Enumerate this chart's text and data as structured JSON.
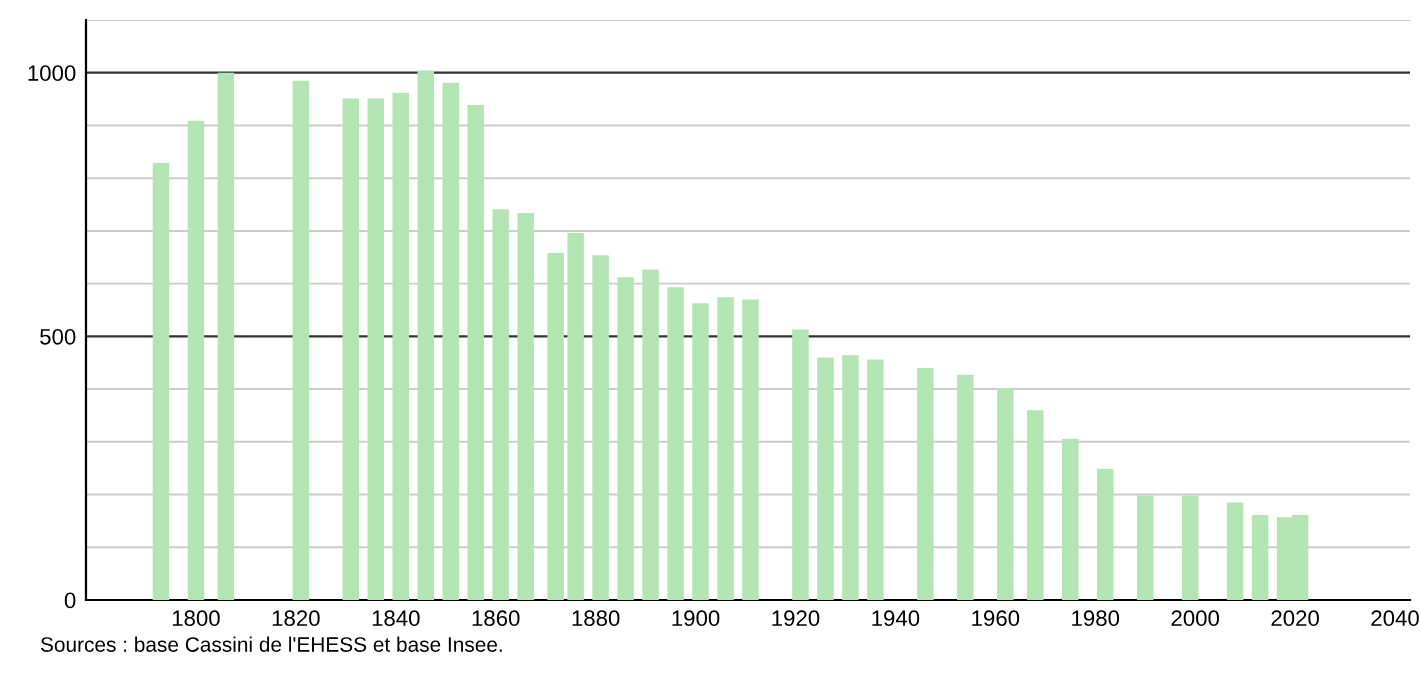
{
  "chart_data": {
    "type": "bar",
    "x": [
      1793,
      1800,
      1806,
      1821,
      1831,
      1836,
      1841,
      1846,
      1851,
      1856,
      1861,
      1866,
      1872,
      1876,
      1881,
      1886,
      1891,
      1896,
      1901,
      1906,
      1911,
      1921,
      1926,
      1931,
      1936,
      1946,
      1954,
      1962,
      1968,
      1975,
      1982,
      1990,
      1999,
      2008,
      2013,
      2018,
      2021
    ],
    "values": [
      829,
      909,
      1000,
      985,
      951,
      951,
      962,
      1004,
      981,
      939,
      741,
      734,
      658,
      696,
      654,
      612,
      627,
      593,
      563,
      574,
      570,
      513,
      460,
      464,
      456,
      440,
      427,
      402,
      360,
      306,
      249,
      198,
      198,
      185,
      161,
      157,
      161
    ],
    "color": "#b3e5b3",
    "xlim": [
      1778,
      2043
    ],
    "xticks": [
      1800,
      1820,
      1840,
      1860,
      1880,
      1900,
      1920,
      1940,
      1960,
      1980,
      2000,
      2020,
      2040
    ],
    "ylim": [
      0,
      1100
    ],
    "yticks": [
      0,
      {
        "value": 100,
        "label": null
      },
      {
        "value": 200,
        "label": null
      },
      {
        "value": 300,
        "label": null
      },
      {
        "value": 400,
        "label": null
      },
      500,
      {
        "value": 600,
        "label": null
      },
      {
        "value": 700,
        "label": null
      },
      {
        "value": 800,
        "label": null
      },
      {
        "value": 900,
        "label": null
      },
      1000,
      {
        "value": 1100,
        "label": null
      }
    ],
    "grid": "y",
    "annotations": [
      "Sources : base Cassini de l'EHESS et base Insee."
    ]
  }
}
